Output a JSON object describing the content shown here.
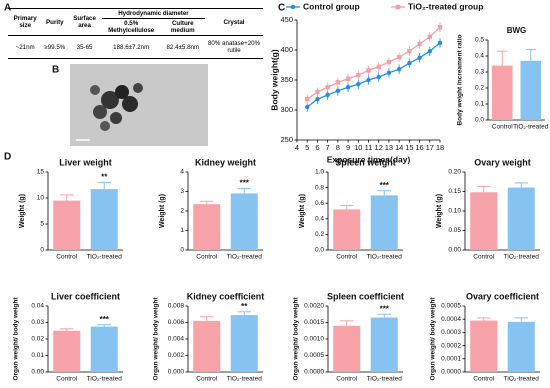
{
  "panel_labels": [
    "A",
    "B",
    "C",
    "D"
  ],
  "table": {
    "headers": [
      "Primary size",
      "Purity",
      "Surface area",
      "Crystal"
    ],
    "group_header": "Hydrodynamic diameter",
    "subheaders": [
      "0.5% Methylcellulose",
      "Culture medium"
    ],
    "rows": [
      [
        "~21nm",
        "≥99.5%",
        "35-65",
        "188.6±7.2nm",
        "82.4±5.8nm",
        "80% anatase+20% rutile"
      ]
    ]
  },
  "chart_data": [
    {
      "type": "line",
      "xlabel": "Exposure times(day)",
      "ylabel": "Body weight(g)",
      "x": [
        5,
        6,
        7,
        8,
        9,
        10,
        11,
        12,
        13,
        14,
        15,
        16,
        17,
        18
      ],
      "xlim": [
        4,
        18
      ],
      "xticks": [
        4,
        5,
        6,
        7,
        8,
        9,
        10,
        11,
        12,
        13,
        14,
        15,
        16,
        17,
        18
      ],
      "ylim": [
        250,
        450
      ],
      "yticks": [
        250,
        300,
        350,
        400,
        450
      ],
      "series": [
        {
          "name": "Control group",
          "color": "#1e8fe6",
          "marker": "circle",
          "values": [
            305,
            318,
            325,
            332,
            338,
            343,
            350,
            355,
            362,
            368,
            378,
            387,
            398,
            412
          ],
          "errors": [
            8,
            8,
            8,
            8,
            8,
            8,
            8,
            8,
            8,
            8,
            8,
            8,
            8,
            8
          ]
        },
        {
          "name": "TiO₂-treated group",
          "color": "#f4a0a6",
          "marker": "square",
          "values": [
            318,
            330,
            338,
            346,
            352,
            358,
            366,
            372,
            380,
            388,
            398,
            410,
            422,
            438
          ],
          "errors": [
            8,
            8,
            8,
            8,
            8,
            8,
            8,
            8,
            8,
            8,
            8,
            8,
            8,
            8
          ]
        }
      ]
    },
    {
      "type": "bar",
      "title": "BWG",
      "ylabel": "Body weight increament ratio",
      "categories": [
        "Control",
        "TiO₂-treated"
      ],
      "values": [
        0.34,
        0.37
      ],
      "errors": [
        0.09,
        0.07
      ],
      "colors": [
        "#f7a1a8",
        "#86c3f0"
      ],
      "ylim": [
        0,
        0.5
      ],
      "yticks": [
        {
          "value": 0,
          "label": "0.0"
        },
        0.1,
        0.2,
        0.3,
        0.4,
        0.5
      ]
    },
    {
      "type": "bar",
      "title": "Liver weight",
      "ylabel": "Weight (g)",
      "categories": [
        "Control",
        "TiO₂-treated"
      ],
      "values": [
        9.5,
        11.7
      ],
      "errors": [
        1.1,
        1.3
      ],
      "colors": [
        "#f7a1a8",
        "#86c3f0"
      ],
      "annotation": "**",
      "ylim": [
        0,
        15
      ],
      "yticks": [
        0,
        5,
        10,
        15
      ]
    },
    {
      "type": "bar",
      "title": "Kidney weight",
      "ylabel": "Weight (g)",
      "categories": [
        "Control",
        "TiO₂-treated"
      ],
      "values": [
        2.35,
        2.9
      ],
      "errors": [
        0.15,
        0.25
      ],
      "colors": [
        "#f7a1a8",
        "#86c3f0"
      ],
      "annotation": "***",
      "ylim": [
        0,
        4
      ],
      "yticks": [
        0,
        1,
        2,
        3,
        4
      ]
    },
    {
      "type": "bar",
      "title": "Spleen weight",
      "ylabel": "Weight (g)",
      "categories": [
        "Control",
        "TiO₂-treated"
      ],
      "values": [
        0.52,
        0.7
      ],
      "errors": [
        0.05,
        0.06
      ],
      "colors": [
        "#f7a1a8",
        "#86c3f0"
      ],
      "annotation": "***",
      "ylim": [
        0,
        1
      ],
      "yticks": [
        {
          "value": 0,
          "label": "0.0"
        },
        0.2,
        0.4,
        0.6,
        0.8,
        {
          "value": 1,
          "label": "1.0"
        }
      ]
    },
    {
      "type": "bar",
      "title": "Ovary weight",
      "ylabel": "Weight (g)",
      "categories": [
        "Control",
        "TiO₂-treated"
      ],
      "values": [
        0.148,
        0.16
      ],
      "errors": [
        0.015,
        0.012
      ],
      "colors": [
        "#f7a1a8",
        "#86c3f0"
      ],
      "ylim": [
        0,
        0.2
      ],
      "yticks": [
        {
          "value": 0,
          "label": "0.00"
        },
        0.05,
        {
          "value": 0.1,
          "label": "0.10"
        },
        0.15,
        {
          "value": 0.2,
          "label": "0.20"
        }
      ]
    },
    {
      "type": "bar",
      "title": "Liver coefficient",
      "ylabel": "Organ weight/ body weight",
      "categories": [
        "Control",
        "TiO₂-treated"
      ],
      "values": [
        0.025,
        0.0275
      ],
      "errors": [
        0.0012,
        0.0012
      ],
      "colors": [
        "#f7a1a8",
        "#86c3f0"
      ],
      "annotation": "***",
      "ylim": [
        0,
        0.04
      ],
      "yticks": [
        {
          "value": 0,
          "label": "0.00"
        },
        0.01,
        0.02,
        0.03,
        0.04
      ]
    },
    {
      "type": "bar",
      "title": "Kidney coefficient",
      "ylabel": "Organ weight/ body weight",
      "categories": [
        "Control",
        "TiO₂-treated"
      ],
      "values": [
        0.0062,
        0.0069
      ],
      "errors": [
        0.0005,
        0.0004
      ],
      "colors": [
        "#f7a1a8",
        "#86c3f0"
      ],
      "annotation": "**",
      "ylim": [
        0,
        0.008
      ],
      "yticks": [
        {
          "value": 0,
          "label": "0.000"
        },
        0.002,
        0.004,
        0.006,
        0.008
      ]
    },
    {
      "type": "bar",
      "title": "Spleen coefficient",
      "ylabel": "Organ weight/ body weight",
      "categories": [
        "Control",
        "TiO₂-treated"
      ],
      "values": [
        0.0014,
        0.00165
      ],
      "errors": [
        0.00015,
        0.0001
      ],
      "colors": [
        "#f7a1a8",
        "#86c3f0"
      ],
      "annotation": "***",
      "ylim": [
        0,
        0.002
      ],
      "yticks": [
        {
          "value": 0,
          "label": "0.0000"
        },
        0.0005,
        {
          "value": 0.001,
          "label": "0.0010"
        },
        0.0015,
        {
          "value": 0.002,
          "label": "0.0020"
        }
      ]
    },
    {
      "type": "bar",
      "title": "Ovary coefficient",
      "ylabel": "Organ weight/ body weight",
      "categories": [
        "Control",
        "TiO₂-treated"
      ],
      "values": [
        0.00039,
        0.00038
      ],
      "errors": [
        2e-05,
        3e-05
      ],
      "colors": [
        "#f7a1a8",
        "#86c3f0"
      ],
      "ylim": [
        0,
        0.0005
      ],
      "yticks": [
        {
          "value": 0,
          "label": "0.0000"
        },
        0.0001,
        0.0002,
        0.0003,
        0.0004,
        0.0005
      ]
    }
  ]
}
